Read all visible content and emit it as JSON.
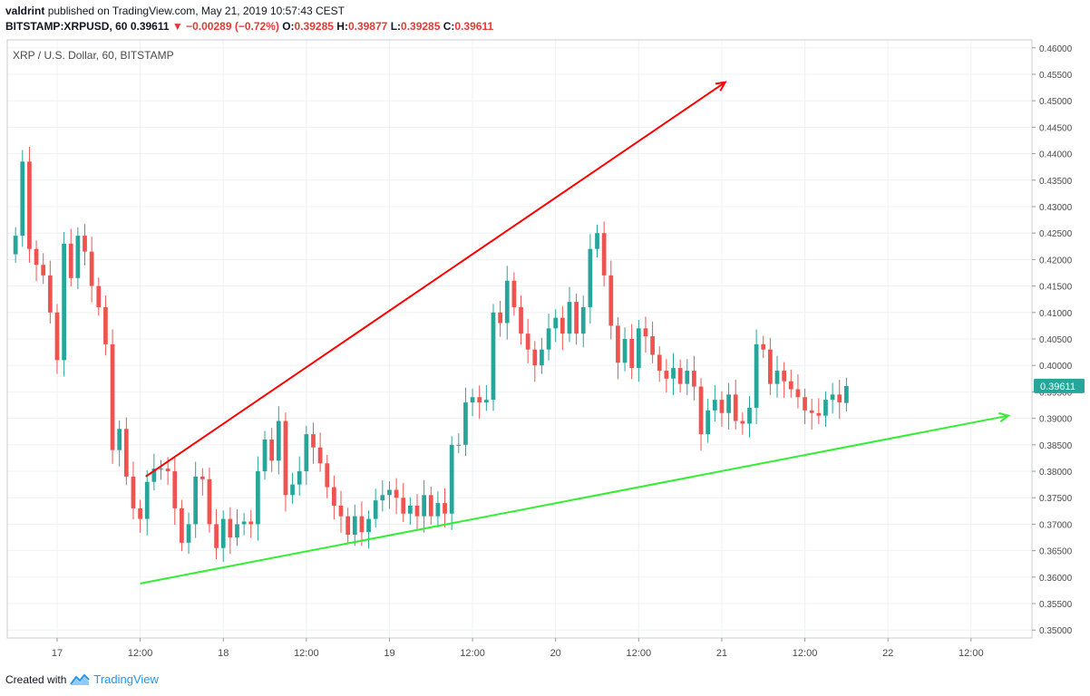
{
  "header": {
    "author": "valdrint",
    "published_text": "published on TradingView.com, May 21, 2019 10:57:43 CEST",
    "symbol": "BITSTAMP:XRPUSD, 60",
    "last": "0.39611",
    "change": "−0.00289 (−0.72%)",
    "o_label": "O:",
    "o": "0.39285",
    "h_label": "H:",
    "h": "0.39877",
    "l_label": "L:",
    "l": "0.39285",
    "c_label": "C:",
    "c": "0.39611"
  },
  "footer": {
    "created_with": "Created with",
    "brand": "TradingView"
  },
  "colors": {
    "up": "#26a69a",
    "down": "#ef5350",
    "resistance": "#ff0000",
    "support": "#33ee33",
    "price_tag": "#26a69a",
    "grid": "#eef1f4"
  },
  "chart_data": {
    "type": "candlestick",
    "legend": "XRP / U.S. Dollar, 60, BITSTAMP",
    "last_price": "0.39611",
    "y_ticks": [
      "0.35000",
      "0.35500",
      "0.36000",
      "0.36500",
      "0.37000",
      "0.37500",
      "0.38000",
      "0.38500",
      "0.39000",
      "0.39500",
      "0.40000",
      "0.40500",
      "0.41000",
      "0.41500",
      "0.42000",
      "0.42500",
      "0.43000",
      "0.43500",
      "0.44000",
      "0.44500",
      "0.45000",
      "0.45500",
      "0.46000"
    ],
    "x_ticks": [
      {
        "label": "17",
        "hour": 0
      },
      {
        "label": "12:00",
        "hour": 12
      },
      {
        "label": "18",
        "hour": 24
      },
      {
        "label": "12:00",
        "hour": 36
      },
      {
        "label": "19",
        "hour": 48
      },
      {
        "label": "12:00",
        "hour": 60
      },
      {
        "label": "20",
        "hour": 72
      },
      {
        "label": "12:00",
        "hour": 84
      },
      {
        "label": "21",
        "hour": 96
      },
      {
        "label": "12:00",
        "hour": 108
      },
      {
        "label": "22",
        "hour": 120
      },
      {
        "label": "12:00",
        "hour": 132
      }
    ],
    "y_range": [
      0.3485,
      0.4615
    ],
    "x_range_hours": [
      -7.2,
      140.8
    ],
    "ohlc_close": [
      0.4245,
      0.4385,
      0.422,
      0.419,
      0.417,
      0.41,
      0.401,
      0.423,
      0.4165,
      0.4245,
      0.4215,
      0.415,
      0.411,
      0.404,
      0.384,
      0.388,
      0.379,
      0.373,
      0.371,
      0.378,
      0.3805,
      0.3805,
      0.38,
      0.373,
      0.3665,
      0.37,
      0.379,
      0.3785,
      0.37,
      0.3655,
      0.371,
      0.3675,
      0.37,
      0.3705,
      0.37,
      0.38,
      0.386,
      0.382,
      0.3895,
      0.3755,
      0.3775,
      0.38,
      0.387,
      0.3845,
      0.3815,
      0.377,
      0.3735,
      0.3715,
      0.368,
      0.3715,
      0.3685,
      0.371,
      0.3745,
      0.3755,
      0.3765,
      0.375,
      0.372,
      0.3735,
      0.3715,
      0.3755,
      0.3715,
      0.374,
      0.372,
      0.385,
      0.385,
      0.393,
      0.394,
      0.393,
      0.3935,
      0.41,
      0.408,
      0.416,
      0.411,
      0.406,
      0.403,
      0.4,
      0.403,
      0.407,
      0.409,
      0.406,
      0.412,
      0.406,
      0.411,
      0.422,
      0.425,
      0.417,
      0.4075,
      0.4005,
      0.405,
      0.3995,
      0.407,
      0.4055,
      0.402,
      0.399,
      0.3975,
      0.3995,
      0.3965,
      0.399,
      0.396,
      0.387,
      0.3915,
      0.3935,
      0.391,
      0.3945,
      0.3895,
      0.389,
      0.392,
      0.404,
      0.403,
      0.3965,
      0.399,
      0.397,
      0.3955,
      0.394,
      0.3915,
      0.391,
      0.3905,
      0.3935,
      0.3945,
      0.393,
      0.3961
    ],
    "ohlc_open": [
      0.421,
      0.4245,
      0.4385,
      0.422,
      0.419,
      0.417,
      0.41,
      0.401,
      0.423,
      0.4165,
      0.4245,
      0.4215,
      0.415,
      0.411,
      0.404,
      0.384,
      0.388,
      0.379,
      0.373,
      0.371,
      0.378,
      0.3805,
      0.3805,
      0.38,
      0.373,
      0.3665,
      0.37,
      0.379,
      0.3785,
      0.37,
      0.3655,
      0.371,
      0.3675,
      0.37,
      0.3705,
      0.37,
      0.38,
      0.386,
      0.382,
      0.3895,
      0.3755,
      0.3775,
      0.38,
      0.387,
      0.3845,
      0.3815,
      0.377,
      0.3735,
      0.3715,
      0.368,
      0.3715,
      0.3685,
      0.371,
      0.3745,
      0.3755,
      0.3765,
      0.375,
      0.372,
      0.3735,
      0.3715,
      0.3755,
      0.3715,
      0.374,
      0.372,
      0.385,
      0.385,
      0.393,
      0.394,
      0.393,
      0.3935,
      0.41,
      0.408,
      0.416,
      0.411,
      0.406,
      0.403,
      0.4,
      0.403,
      0.407,
      0.409,
      0.406,
      0.412,
      0.406,
      0.411,
      0.422,
      0.425,
      0.417,
      0.4075,
      0.4005,
      0.405,
      0.3995,
      0.407,
      0.4055,
      0.402,
      0.399,
      0.3975,
      0.3995,
      0.3965,
      0.399,
      0.396,
      0.387,
      0.3915,
      0.3935,
      0.391,
      0.3945,
      0.3895,
      0.389,
      0.392,
      0.404,
      0.403,
      0.3965,
      0.399,
      0.397,
      0.3955,
      0.394,
      0.3915,
      0.391,
      0.3905,
      0.3935,
      0.3945,
      0.3929
    ],
    "trend_lines": [
      {
        "name": "resistance",
        "from": [
          12.8,
          0.379
        ],
        "to": [
          96.5,
          0.4535
        ],
        "arrow": true
      },
      {
        "name": "support",
        "from": [
          12.0,
          0.3588
        ],
        "to": [
          137.4,
          0.3905
        ],
        "arrow": true
      }
    ]
  }
}
